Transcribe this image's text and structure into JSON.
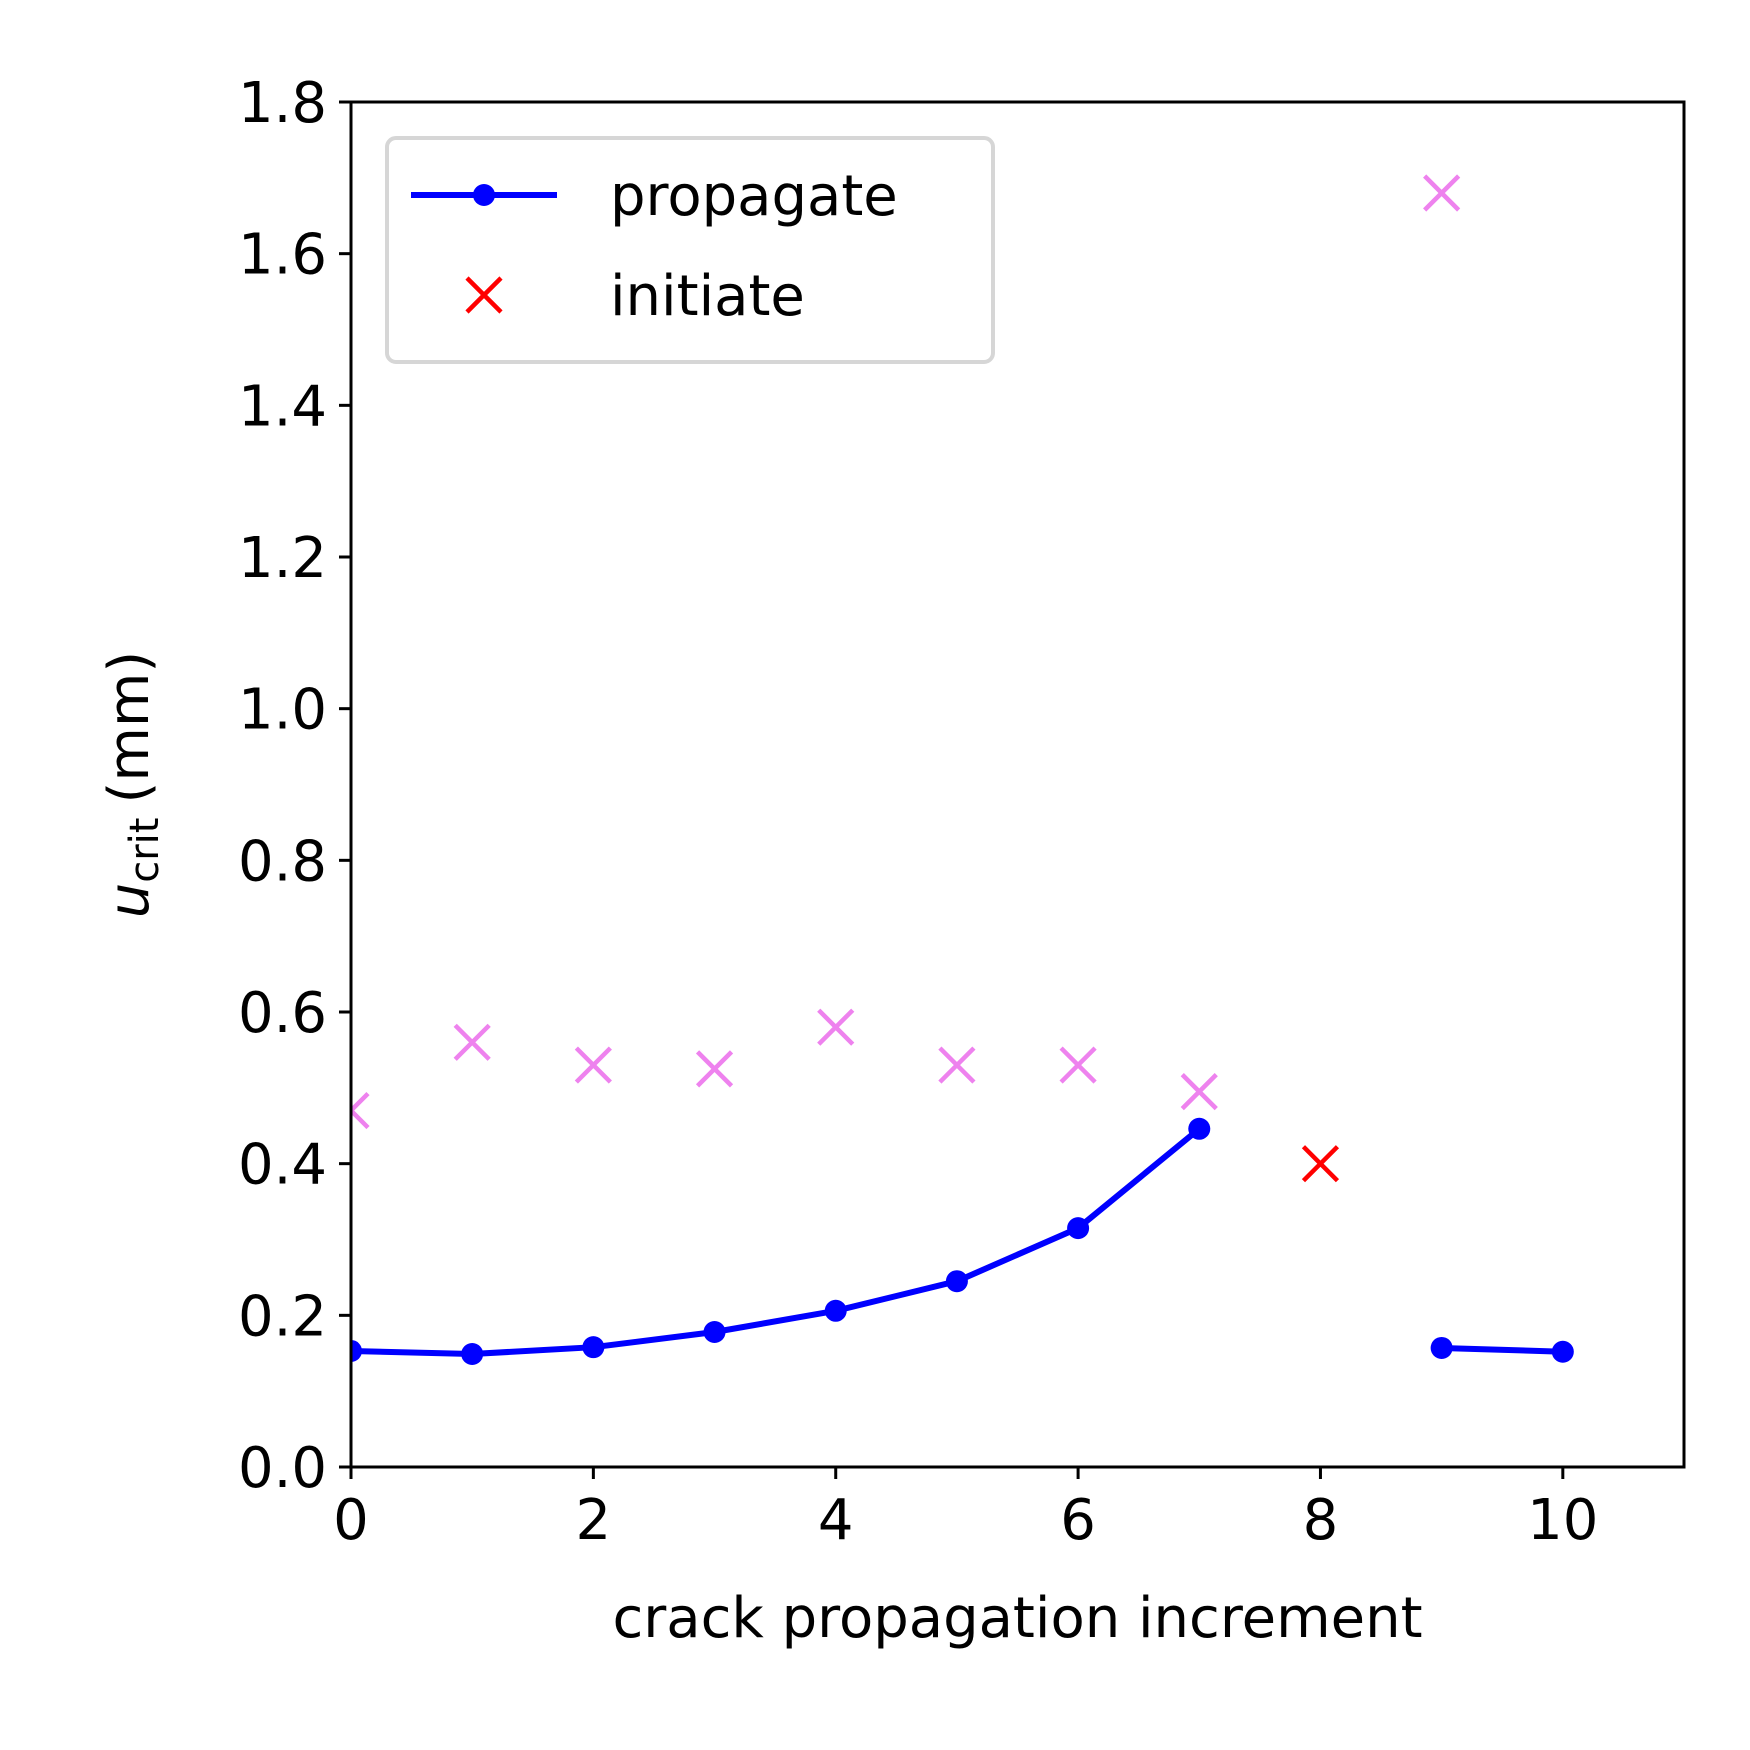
{
  "chart_data": {
    "type": "line",
    "title": "",
    "xlabel": "crack propagation increment",
    "ylabel": {
      "symbol": "u",
      "subscript": "crit",
      "unit": "(mm)"
    },
    "xlim": [
      0,
      11
    ],
    "ylim": [
      0,
      1.8
    ],
    "xticks": [
      0,
      2,
      4,
      6,
      8,
      10
    ],
    "xtick_labels": [
      "0",
      "2",
      "4",
      "6",
      "8",
      "10"
    ],
    "yticks": [
      0,
      0.2,
      0.4,
      0.6,
      0.8,
      1.0,
      1.2,
      1.4,
      1.6,
      1.8
    ],
    "ytick_labels": [
      "0.0",
      "0.2",
      "0.4",
      "0.6",
      "0.8",
      "1.0",
      "1.2",
      "1.4",
      "1.6",
      "1.8"
    ],
    "grid": false,
    "legend_position": "top-left",
    "series": [
      {
        "name": "propagate",
        "marker": "dot",
        "color": "#0000ff",
        "segments": [
          {
            "x": [
              0,
              1,
              2,
              3,
              4,
              5,
              6,
              7
            ],
            "y": [
              0.153,
              0.149,
              0.158,
              0.178,
              0.206,
              0.245,
              0.315,
              0.446
            ]
          },
          {
            "x": [
              9,
              10
            ],
            "y": [
              0.157,
              0.152
            ]
          }
        ]
      },
      {
        "name": "initiate",
        "marker": "x",
        "color": "#ff0000",
        "x": [
          8
        ],
        "y": [
          0.4
        ]
      },
      {
        "name": "",
        "marker": "x",
        "color": "#ee82ee",
        "x": [
          0,
          1,
          2,
          3,
          4,
          5,
          6,
          7,
          9
        ],
        "y": [
          0.47,
          0.56,
          0.53,
          0.525,
          0.58,
          0.53,
          0.53,
          0.495,
          1.68
        ]
      }
    ]
  }
}
